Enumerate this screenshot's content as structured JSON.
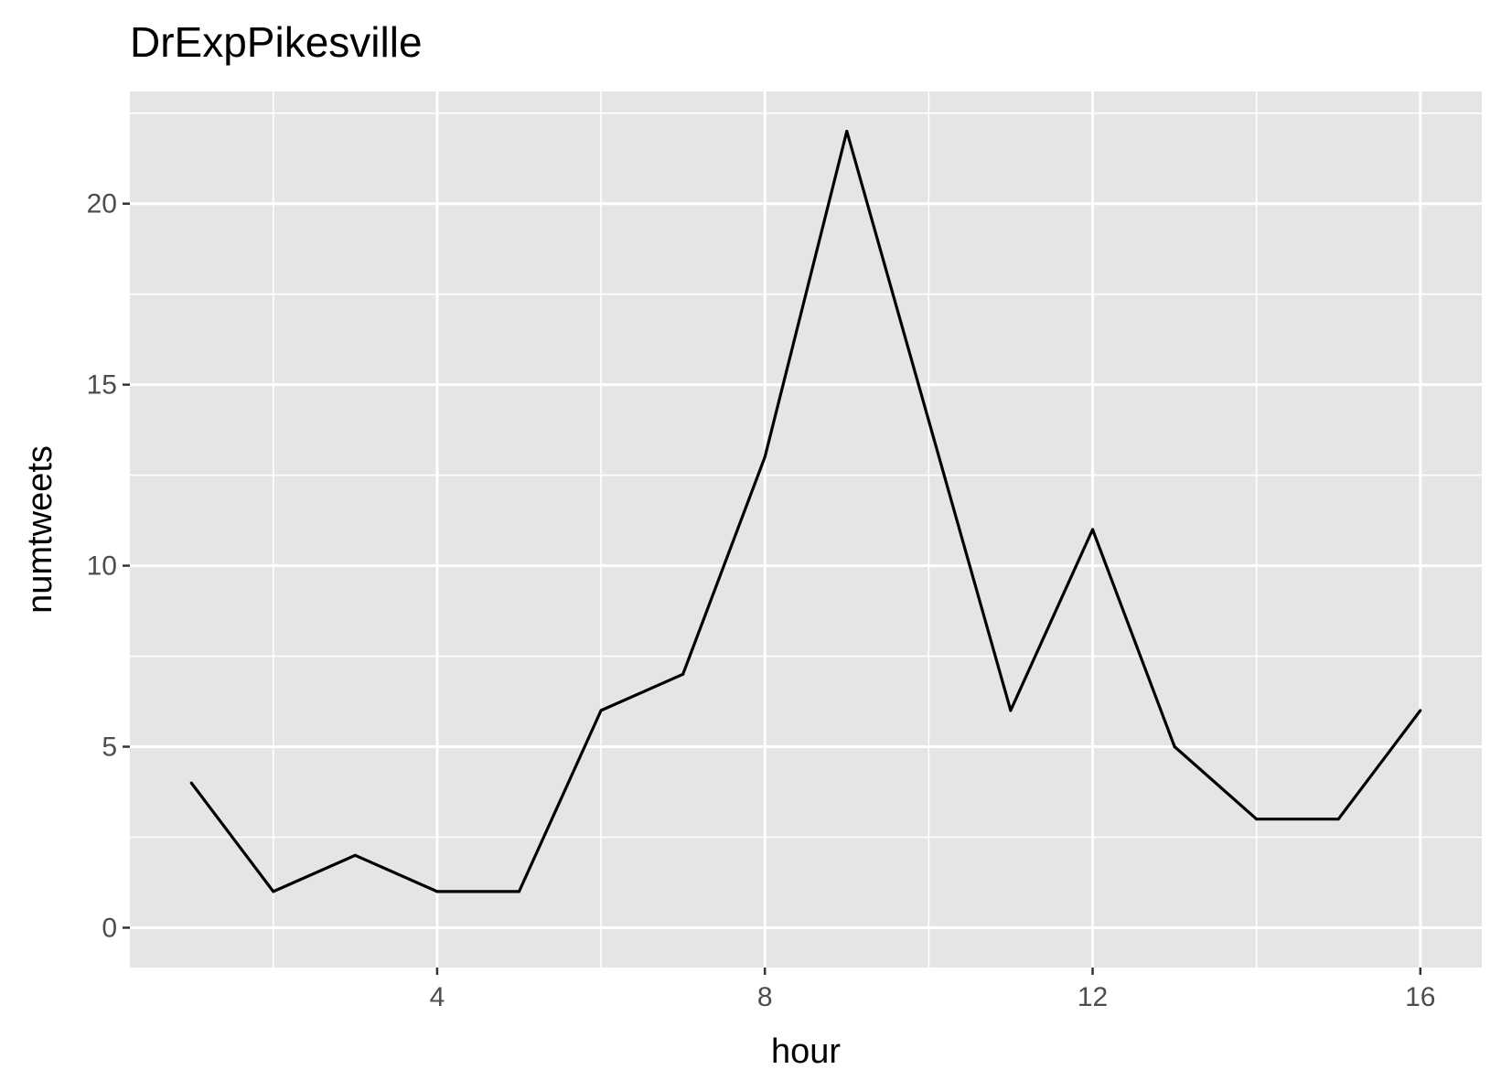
{
  "chart_data": {
    "type": "line",
    "title": "DrExpPikesville",
    "xlabel": "hour",
    "ylabel": "numtweets",
    "x": [
      1,
      2,
      3,
      4,
      5,
      6,
      7,
      8,
      9,
      10,
      11,
      12,
      13,
      14,
      15,
      16
    ],
    "series": [
      {
        "values": [
          4,
          1,
          2,
          1,
          1,
          6,
          7,
          13,
          22,
          14,
          6,
          11,
          5,
          3,
          3,
          6
        ]
      }
    ],
    "xlim": [
      0.25,
      16.75
    ],
    "ylim": [
      -1.1,
      23.1
    ],
    "xticks": [
      4,
      8,
      12,
      16
    ],
    "xticks_minor": [
      2,
      6,
      10,
      14
    ],
    "yticks": [
      0,
      5,
      10,
      15,
      20
    ],
    "yticks_minor": [
      2.5,
      7.5,
      12.5,
      17.5,
      22.5
    ],
    "xtick_labels": [
      "4",
      "8",
      "12",
      "16"
    ],
    "ytick_labels": [
      "0",
      "5",
      "10",
      "15",
      "20"
    ],
    "grid": true,
    "legend": "none",
    "colors": {
      "panel_bg": "#e5e5e5",
      "grid": "#ffffff",
      "line": "#000000",
      "tick_text": "#4d4d4d"
    }
  }
}
